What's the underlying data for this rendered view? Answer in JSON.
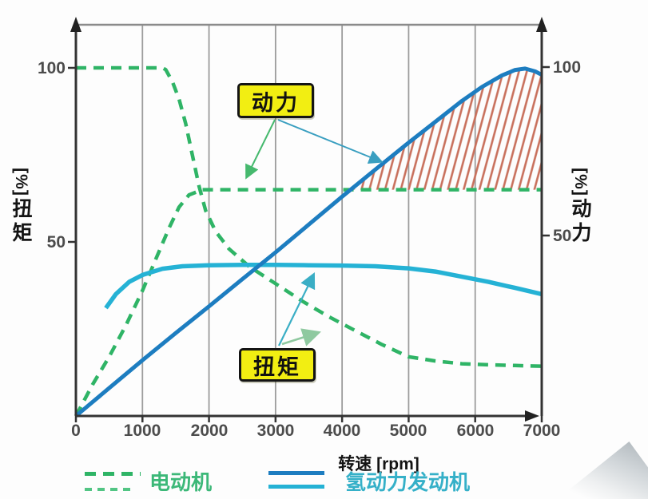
{
  "colors": {
    "green": "#2fb466",
    "green2": "#52c584",
    "greentext": "#3cb878",
    "blue": "#1d7dc0",
    "cyan": "#25b2d5",
    "cyantext": "#35b0c8",
    "hatch": "#c8705c",
    "yellow": "#f2ee12",
    "grid": "#9c9c9c",
    "axis": "#333333",
    "ticktext": "#4c4c4c"
  },
  "axes": {
    "left": {
      "unit": "[%]",
      "title": "扭矩",
      "ticks": [
        "100",
        "50"
      ]
    },
    "right": {
      "unit": "[%]",
      "title": "动力",
      "ticks": [
        "100",
        "50"
      ]
    },
    "x": {
      "title": "转速 [rpm]",
      "ticks": [
        "0",
        "1000",
        "2000",
        "3000",
        "4000",
        "5000",
        "6000",
        "7000"
      ]
    }
  },
  "annotations": {
    "power_label": "动力",
    "torque_label": "扭矩"
  },
  "legend": {
    "ev_label": "电动机",
    "h2_label": "氢动力发动机"
  },
  "chart_data": {
    "type": "line",
    "xlabel": "转速 [rpm]",
    "ylabel_left": "扭矩 [%]",
    "ylabel_right": "动力 [%]",
    "x_range": [
      0,
      7000
    ],
    "y_range": [
      0,
      112
    ],
    "grid": "vertical-only",
    "legend_position": "bottom",
    "series": [
      {
        "id": "ev_torque",
        "name": "电动机 扭矩",
        "style": "dashed",
        "color": "#2fb466",
        "points": [
          [
            0,
            100
          ],
          [
            1300,
            100
          ],
          [
            1350,
            99.5
          ],
          [
            1450,
            96
          ],
          [
            1550,
            91
          ],
          [
            1650,
            84
          ],
          [
            1750,
            75
          ],
          [
            1850,
            66
          ],
          [
            1950,
            59
          ],
          [
            2100,
            53
          ],
          [
            2300,
            48
          ],
          [
            2600,
            43
          ],
          [
            3000,
            38
          ],
          [
            3400,
            33
          ],
          [
            3800,
            28.5
          ],
          [
            4200,
            24.5
          ],
          [
            4600,
            20.5
          ],
          [
            5000,
            17
          ],
          [
            5400,
            15.8
          ],
          [
            5800,
            15
          ],
          [
            6200,
            14.7
          ],
          [
            6600,
            14.5
          ],
          [
            7000,
            14.3
          ]
        ]
      },
      {
        "id": "ev_power",
        "name": "电动机 动力",
        "style": "dashed",
        "color": "#2fb466",
        "points": [
          [
            0,
            0
          ],
          [
            250,
            9
          ],
          [
            500,
            17
          ],
          [
            750,
            26
          ],
          [
            1000,
            36
          ],
          [
            1200,
            45
          ],
          [
            1400,
            54
          ],
          [
            1550,
            60
          ],
          [
            1700,
            63.5
          ],
          [
            1900,
            65
          ],
          [
            2500,
            65
          ],
          [
            7000,
            65
          ]
        ]
      },
      {
        "id": "h2_power",
        "name": "氢动力发动机 动力",
        "style": "solid",
        "color": "#1d7dc0",
        "points": [
          [
            0,
            0
          ],
          [
            500,
            8
          ],
          [
            1000,
            16
          ],
          [
            1500,
            23.8
          ],
          [
            2000,
            31.5
          ],
          [
            2500,
            39.3
          ],
          [
            3000,
            47
          ],
          [
            3500,
            55
          ],
          [
            4000,
            63
          ],
          [
            4500,
            70.8
          ],
          [
            5000,
            78.5
          ],
          [
            5400,
            84.5
          ],
          [
            5800,
            90.5
          ],
          [
            6100,
            94.5
          ],
          [
            6400,
            97.8
          ],
          [
            6600,
            99.4
          ],
          [
            6750,
            99.8
          ],
          [
            6900,
            99
          ],
          [
            7000,
            98
          ]
        ]
      },
      {
        "id": "h2_torque",
        "name": "氢动力发动机 扭矩",
        "style": "solid",
        "color": "#25b2d5",
        "points": [
          [
            450,
            31
          ],
          [
            600,
            35
          ],
          [
            800,
            38.5
          ],
          [
            1000,
            40.5
          ],
          [
            1300,
            42.3
          ],
          [
            1600,
            43
          ],
          [
            2000,
            43.3
          ],
          [
            2500,
            43.4
          ],
          [
            3000,
            43.4
          ],
          [
            3500,
            43.3
          ],
          [
            4000,
            43.2
          ],
          [
            4500,
            43
          ],
          [
            5000,
            42.4
          ],
          [
            5400,
            41.5
          ],
          [
            5800,
            40
          ],
          [
            6200,
            38.5
          ],
          [
            6600,
            36.8
          ],
          [
            7000,
            35
          ]
        ]
      }
    ],
    "hatch_region": {
      "description": "area between h2_power curve and ev_power 65% line",
      "start_rpm": 4150,
      "end_rpm": 7000,
      "level_pct": 65,
      "color": "#c8705c"
    }
  }
}
